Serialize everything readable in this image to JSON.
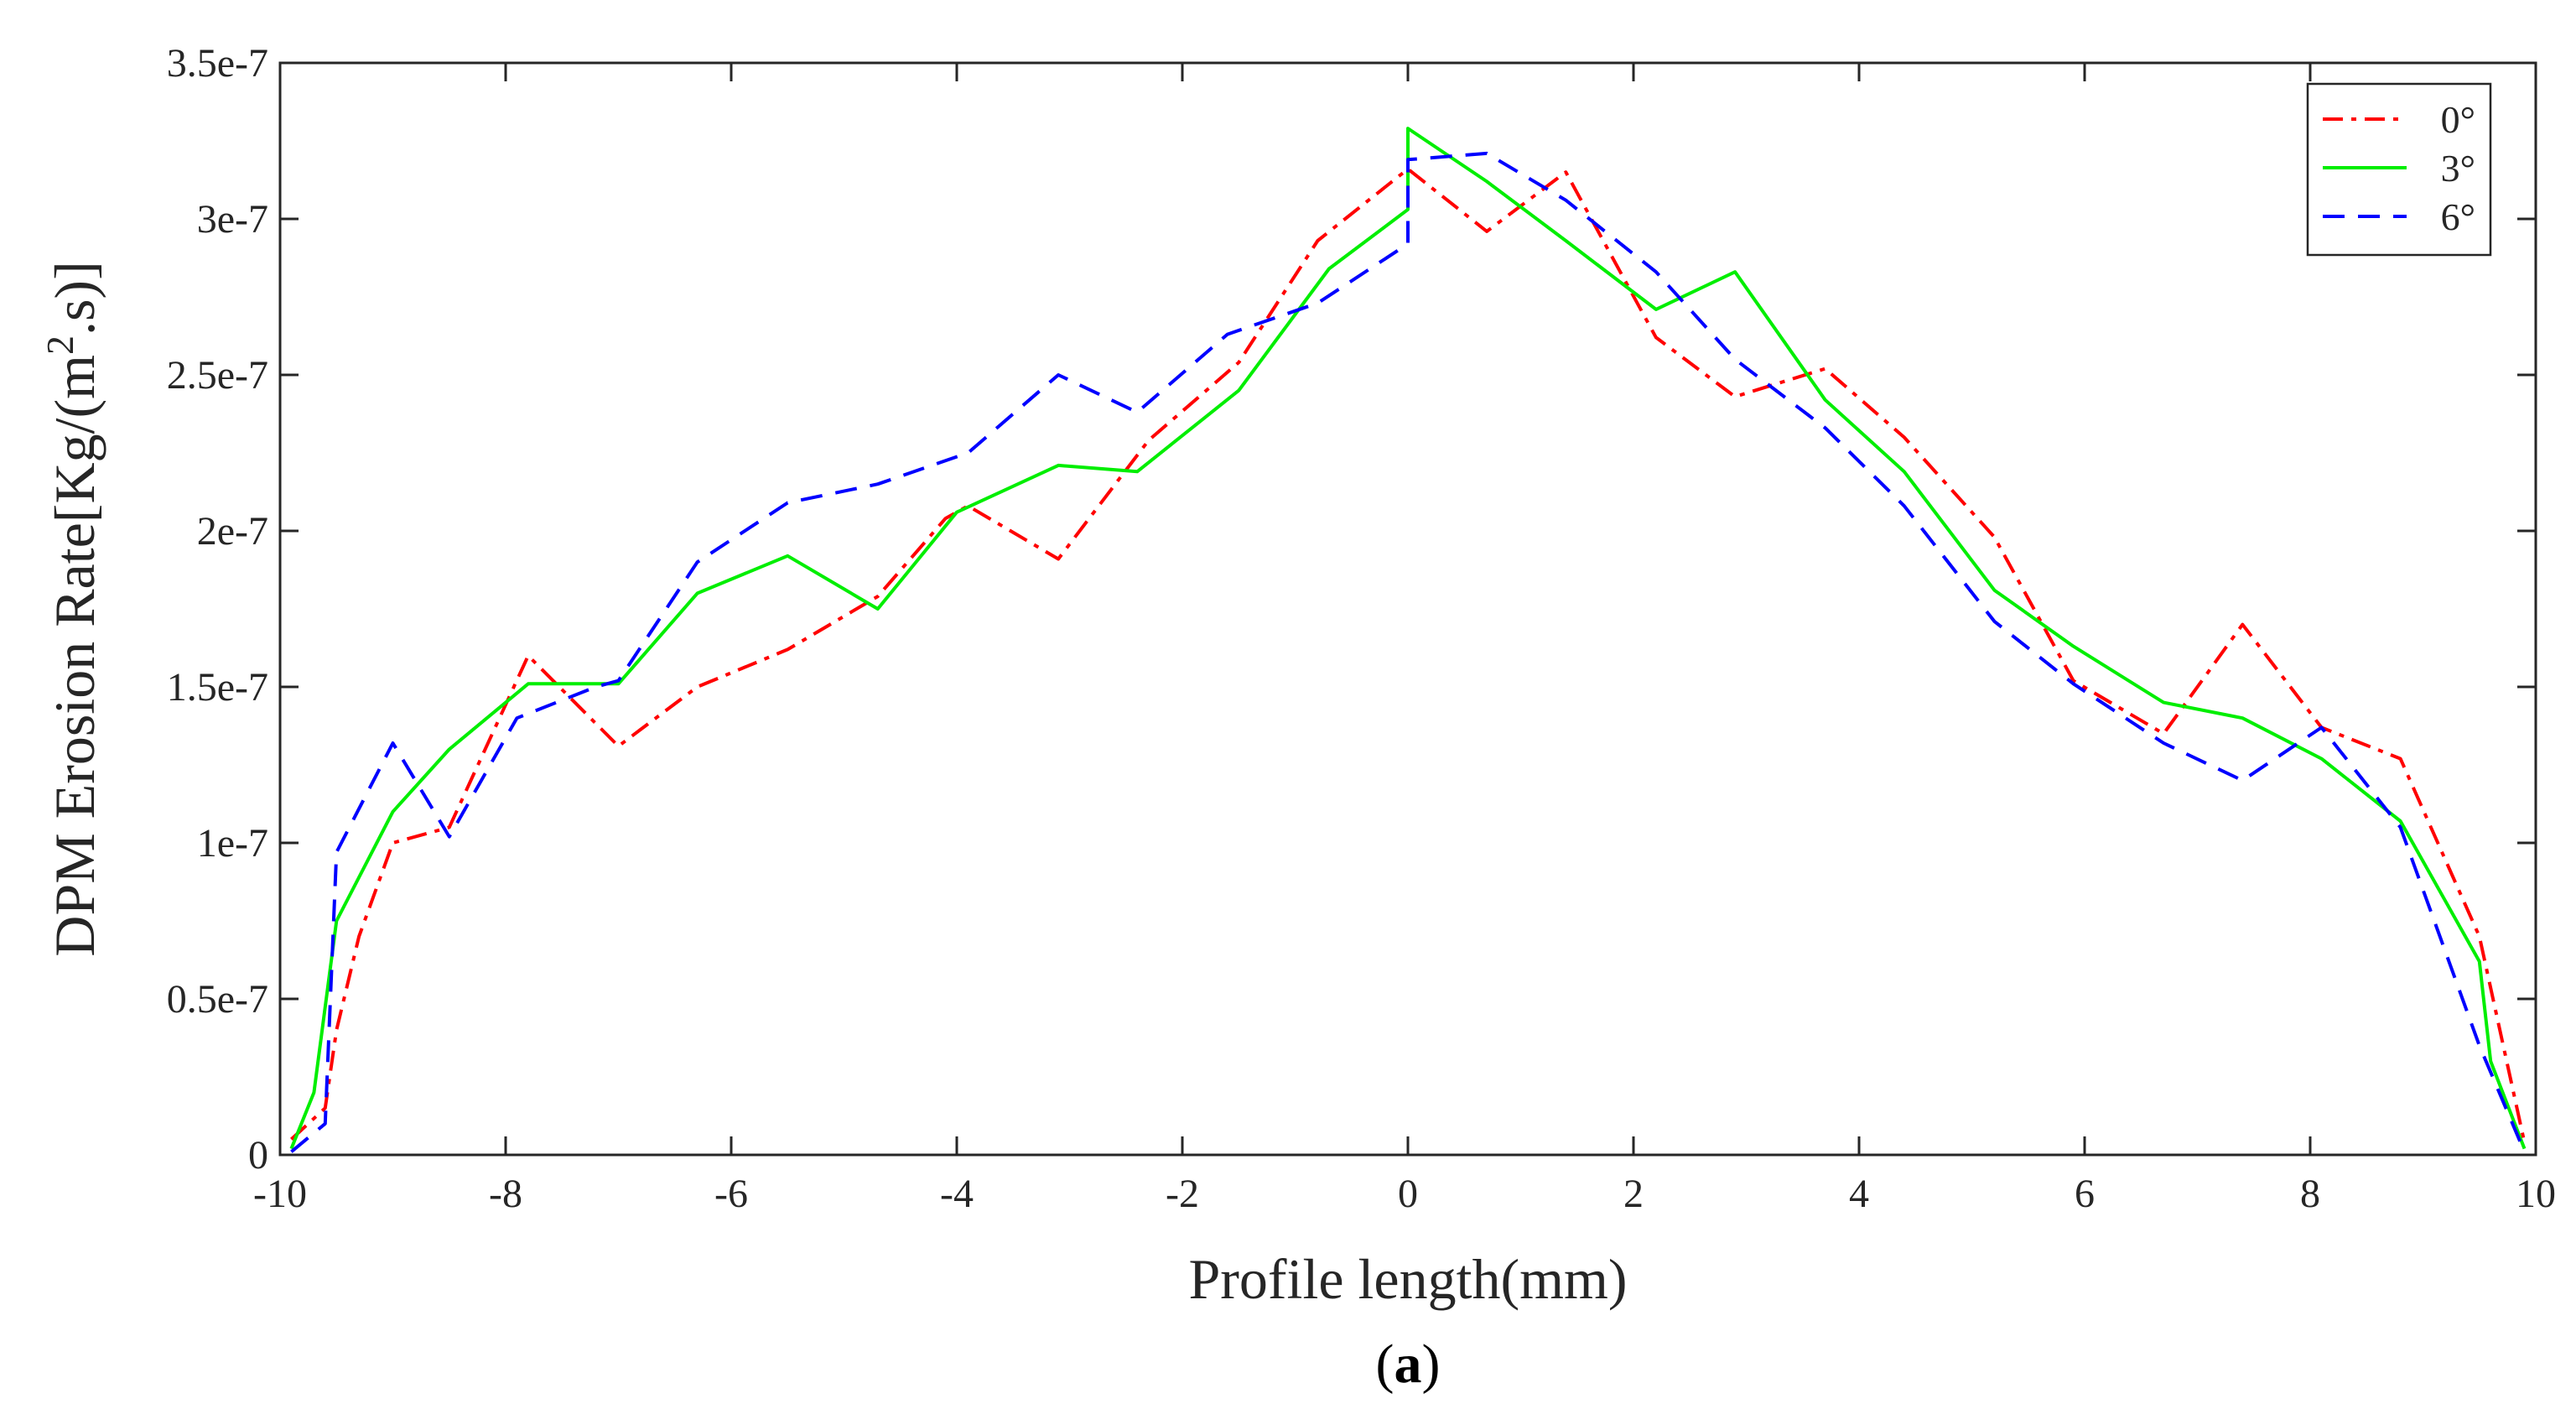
{
  "chart_data": {
    "type": "line",
    "title": "",
    "xlabel": "Profile length(mm)",
    "ylabel": "DPM Erosion Rate[Kg/(m².s)]",
    "ylabel_parts": {
      "prefix": "DPM Erosion Rate[Kg/(m",
      "sup": "2",
      "suffix": ".s)]"
    },
    "xlim": [
      -10,
      10
    ],
    "ylim": [
      0,
      3.5e-07
    ],
    "xticks": [
      -10,
      -8,
      -6,
      -4,
      -2,
      0,
      2,
      4,
      6,
      8,
      10
    ],
    "xtick_labels": [
      "-10",
      "-8",
      "-6",
      "-4",
      "-2",
      "0",
      "2",
      "4",
      "6",
      "8",
      "10"
    ],
    "yticks": [
      0,
      5e-08,
      1e-07,
      1.5e-07,
      2e-07,
      2.5e-07,
      3e-07,
      3.5e-07
    ],
    "ytick_labels": [
      "0",
      "0.5e-7",
      "1e-7",
      "1.5e-7",
      "2e-7",
      "2.5e-7",
      "3e-7",
      "3.5e-7"
    ],
    "grid": false,
    "legend_position": "top-right",
    "caption": {
      "open": "(",
      "letter": "a",
      "close": ")"
    },
    "series": [
      {
        "name": "0°",
        "color": "#ff0000",
        "style": "dashdot",
        "x": [
          -9.9,
          -9.6,
          -9.5,
          -9.3,
          -9.0,
          -8.5,
          -7.8,
          -7.0,
          -6.3,
          -5.5,
          -4.7,
          -4.1,
          -3.9,
          -3.1,
          -2.3,
          -1.5,
          -0.8,
          0.0,
          0.7,
          1.4,
          2.2,
          2.9,
          3.7,
          4.4,
          5.2,
          5.9,
          6.7,
          7.4,
          8.1,
          8.8,
          9.5,
          9.9
        ],
        "y": [
          5e-09,
          1.5e-08,
          4e-08,
          7e-08,
          1e-07,
          1.05e-07,
          1.6e-07,
          1.31e-07,
          1.5e-07,
          1.62e-07,
          1.79e-07,
          2.04e-07,
          2.08e-07,
          1.91e-07,
          2.29e-07,
          2.54e-07,
          2.93e-07,
          3.16e-07,
          2.96e-07,
          3.15e-07,
          2.62e-07,
          2.43e-07,
          2.52e-07,
          2.3e-07,
          1.98e-07,
          1.52e-07,
          1.35e-07,
          1.7e-07,
          1.37e-07,
          1.27e-07,
          7e-08,
          4e-09
        ]
      },
      {
        "name": "3°",
        "color": "#00ee00",
        "style": "solid",
        "x": [
          -9.9,
          -9.7,
          -9.5,
          -9.0,
          -8.5,
          -7.8,
          -7.2,
          -7.0,
          -6.3,
          -5.5,
          -4.7,
          -4.0,
          -3.1,
          -2.4,
          -1.5,
          -0.7,
          0.0,
          0.0,
          0.7,
          1.4,
          2.2,
          2.9,
          3.7,
          4.4,
          5.2,
          5.9,
          6.7,
          7.4,
          8.1,
          8.8,
          9.5,
          9.6,
          9.9
        ],
        "y": [
          2e-09,
          2e-08,
          7.5e-08,
          1.1e-07,
          1.3e-07,
          1.51e-07,
          1.51e-07,
          1.51e-07,
          1.8e-07,
          1.92e-07,
          1.75e-07,
          2.06e-07,
          2.21e-07,
          2.19e-07,
          2.45e-07,
          2.84e-07,
          3.03e-07,
          3.29e-07,
          3.12e-07,
          2.93e-07,
          2.71e-07,
          2.83e-07,
          2.42e-07,
          2.19e-07,
          1.81e-07,
          1.63e-07,
          1.45e-07,
          1.4e-07,
          1.27e-07,
          1.07e-07,
          6.2e-08,
          3e-08,
          2e-09
        ]
      },
      {
        "name": "6°",
        "color": "#0000ff",
        "style": "dashed",
        "x": [
          -9.9,
          -9.6,
          -9.5,
          -9.0,
          -8.5,
          -7.9,
          -7.2,
          -7.0,
          -6.3,
          -5.5,
          -4.7,
          -3.9,
          -3.1,
          -2.4,
          -1.6,
          -0.8,
          0.0,
          0.0,
          0.7,
          1.4,
          2.2,
          2.9,
          3.7,
          4.4,
          5.2,
          5.9,
          6.7,
          7.4,
          8.1,
          8.8,
          9.5,
          9.9
        ],
        "y": [
          1e-09,
          1e-08,
          9.7e-08,
          1.32e-07,
          1.02e-07,
          1.4e-07,
          1.5e-07,
          1.52e-07,
          1.9e-07,
          2.09e-07,
          2.15e-07,
          2.25e-07,
          2.5e-07,
          2.38e-07,
          2.63e-07,
          2.73e-07,
          2.92e-07,
          3.19e-07,
          3.21e-07,
          3.06e-07,
          2.83e-07,
          2.55e-07,
          2.33e-07,
          2.08e-07,
          1.71e-07,
          1.51e-07,
          1.32e-07,
          1.2e-07,
          1.37e-07,
          1.05e-07,
          3.5e-08,
          1e-09
        ]
      }
    ]
  }
}
